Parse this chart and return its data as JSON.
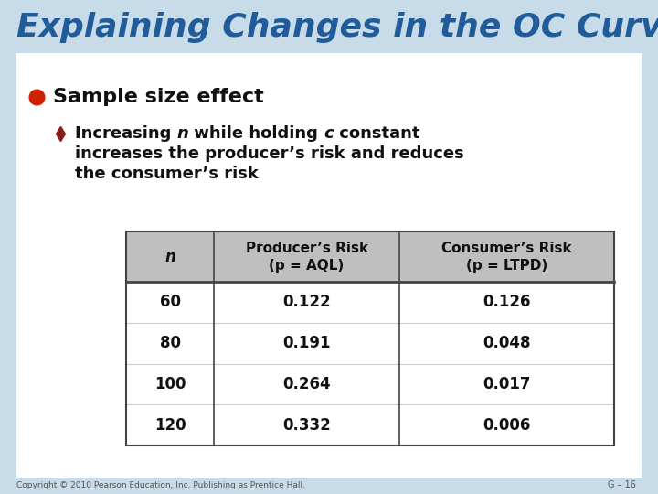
{
  "title": "Explaining Changes in the OC Curve",
  "title_color": "#1F5C99",
  "title_fontsize": 26,
  "bg_outer": "#C8DBE8",
  "bg_inner": "#FFFFFF",
  "bullet1_text": "Sample size effect",
  "bullet1_color": "#CC2200",
  "bullet2_line2": "increases the producer’s risk and reduces",
  "bullet2_line3": "the consumer’s risk",
  "bullet2_marker_color": "#8B1A1A",
  "table_header_bg": "#BFBFBF",
  "table_border_color": "#444444",
  "col_headers_line1": [
    "n",
    "Producer’s Risk",
    "Consumer’s Risk"
  ],
  "col_headers_line2": [
    "",
    "(p = AQL)",
    "(p = LTPD)"
  ],
  "rows": [
    [
      "60",
      "0.122",
      "0.126"
    ],
    [
      "80",
      "0.191",
      "0.048"
    ],
    [
      "100",
      "0.264",
      "0.017"
    ],
    [
      "120",
      "0.332",
      "0.006"
    ]
  ],
  "footer_text": "Copyright © 2010 Pearson Education, Inc. Publishing as Prentice Hall.",
  "page_text": "G – 16",
  "fig_width": 7.2,
  "fig_height": 5.4,
  "dpi": 100
}
